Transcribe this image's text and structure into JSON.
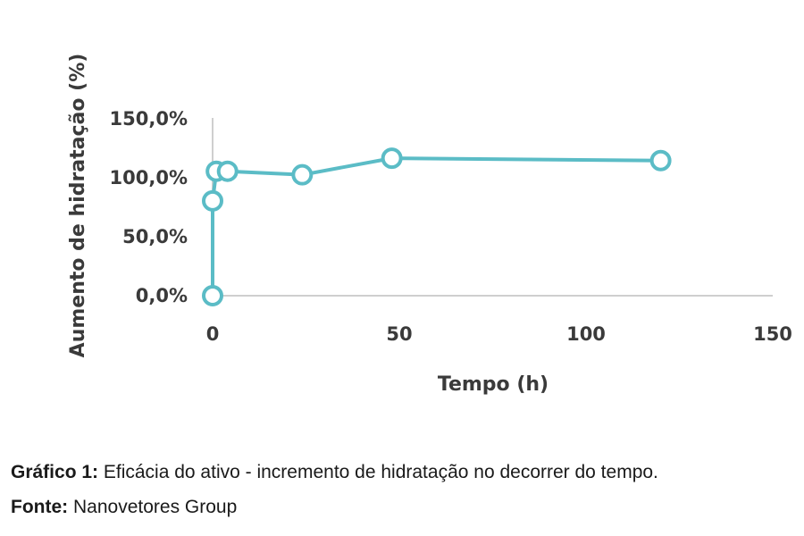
{
  "chart_data": {
    "type": "line",
    "xlabel": "Tempo (h)",
    "ylabel": "Aumento de hidratação (%)",
    "xlim": [
      0,
      150
    ],
    "ylim": [
      0,
      150
    ],
    "x_ticks": [
      "0",
      "50",
      "100",
      "150"
    ],
    "y_ticks": [
      "0,0%",
      "50,0%",
      "100,0%",
      "150,0%"
    ],
    "grid": false,
    "line_color": "#5bbcc6",
    "series": [
      {
        "x": [
          0,
          0,
          1,
          4,
          24,
          48,
          120
        ],
        "y": [
          0,
          80,
          105,
          105,
          102,
          116,
          114
        ]
      }
    ]
  },
  "caption": {
    "label": "Gráfico 1:",
    "text": "Eficácia do ativo - incremento de hidratação no decorrer do tempo."
  },
  "source": {
    "label": "Fonte:",
    "text": "Nanovetores Group"
  }
}
